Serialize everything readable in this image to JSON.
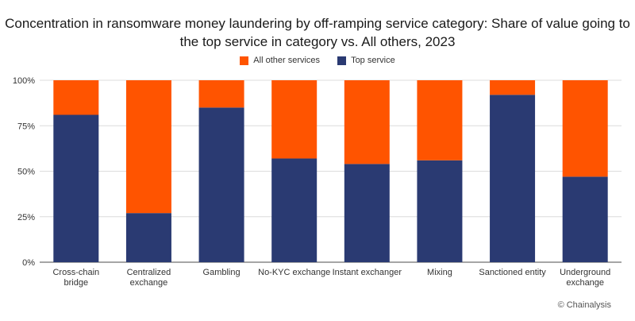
{
  "chart_data": {
    "type": "bar",
    "stacked": true,
    "title": "Concentration in ransomware money laundering by off-ramping service category: Share of value going to the top service in category vs. All others, 2023",
    "categories": [
      "Cross-chain bridge",
      "Centralized exchange",
      "Gambling",
      "No-KYC exchange",
      "Instant exchanger",
      "Mixing",
      "Sanctioned entity",
      "Underground exchange"
    ],
    "category_lines": [
      [
        "Cross-chain",
        "bridge"
      ],
      [
        "Centralized",
        "exchange"
      ],
      [
        "Gambling"
      ],
      [
        "No-KYC exchange"
      ],
      [
        "Instant exchanger"
      ],
      [
        "Mixing"
      ],
      [
        "Sanctioned entity"
      ],
      [
        "Underground",
        "exchange"
      ]
    ],
    "series": [
      {
        "name": "Top service",
        "color": "#2a3a72",
        "values": [
          81,
          27,
          85,
          57,
          54,
          56,
          92,
          47
        ]
      },
      {
        "name": "All other services",
        "color": "#ff5400",
        "values": [
          19,
          73,
          15,
          43,
          46,
          44,
          8,
          53
        ]
      }
    ],
    "yticks": [
      "0%",
      "25%",
      "50%",
      "75%",
      "100%"
    ],
    "ylim": [
      0,
      100
    ],
    "grid": true,
    "legend_position": "top",
    "legend_order": [
      "All other services",
      "Top service"
    ],
    "xlabel": "",
    "ylabel": ""
  },
  "credit": "© Chainalysis"
}
